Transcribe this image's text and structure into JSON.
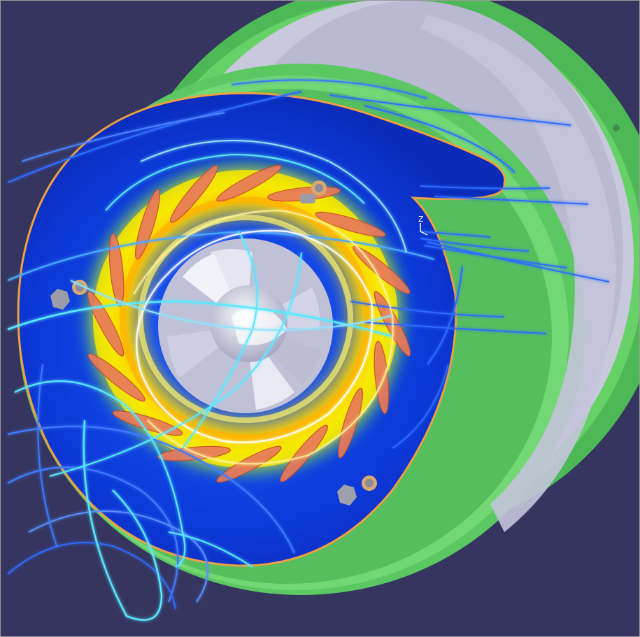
{
  "viewport": {
    "axis_label": "Z"
  },
  "colors": {
    "background": "#35355f",
    "housing": "#66d166",
    "housing_dark": "#3fa84a",
    "plate": "#c8c8dc",
    "field_low": "#0a2fd0",
    "field_mid": "#27c7d6",
    "field_high": "#f0e600",
    "field_peak": "#e44a1a",
    "blade": "#e87a5a",
    "impeller": "#dcdcea",
    "streamline_blue": "#2f6cff",
    "streamline_cyan": "#5ae8ff"
  },
  "icons": [
    "axis-triad-icon"
  ]
}
